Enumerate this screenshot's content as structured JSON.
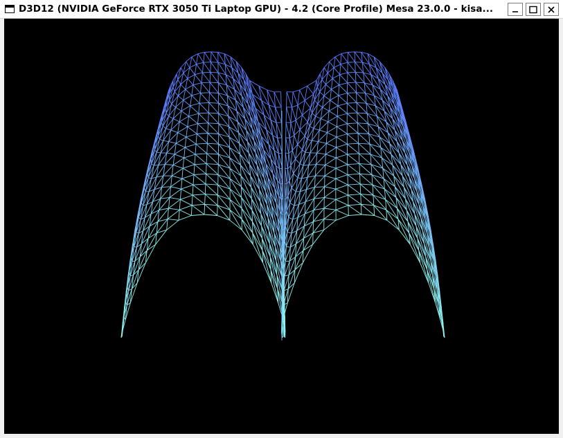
{
  "window": {
    "title": "D3D12 (NVIDIA GeForce RTX 3050 Ti Laptop GPU) - 4.2 (Core Profile) Mesa 23.0.0 - kisa...",
    "icon": "window-icon",
    "controls": [
      {
        "name": "minimize-button",
        "icon": "minimize-icon"
      },
      {
        "name": "maximize-button",
        "icon": "maximize-icon"
      },
      {
        "name": "close-button",
        "icon": "close-icon"
      }
    ]
  },
  "viewport": {
    "background": "#000000",
    "render_mode": "wireframe",
    "mesh_colors": {
      "near": "#8ff5f0",
      "far": "#5a78ff",
      "edge": "#3c6a6a"
    }
  }
}
